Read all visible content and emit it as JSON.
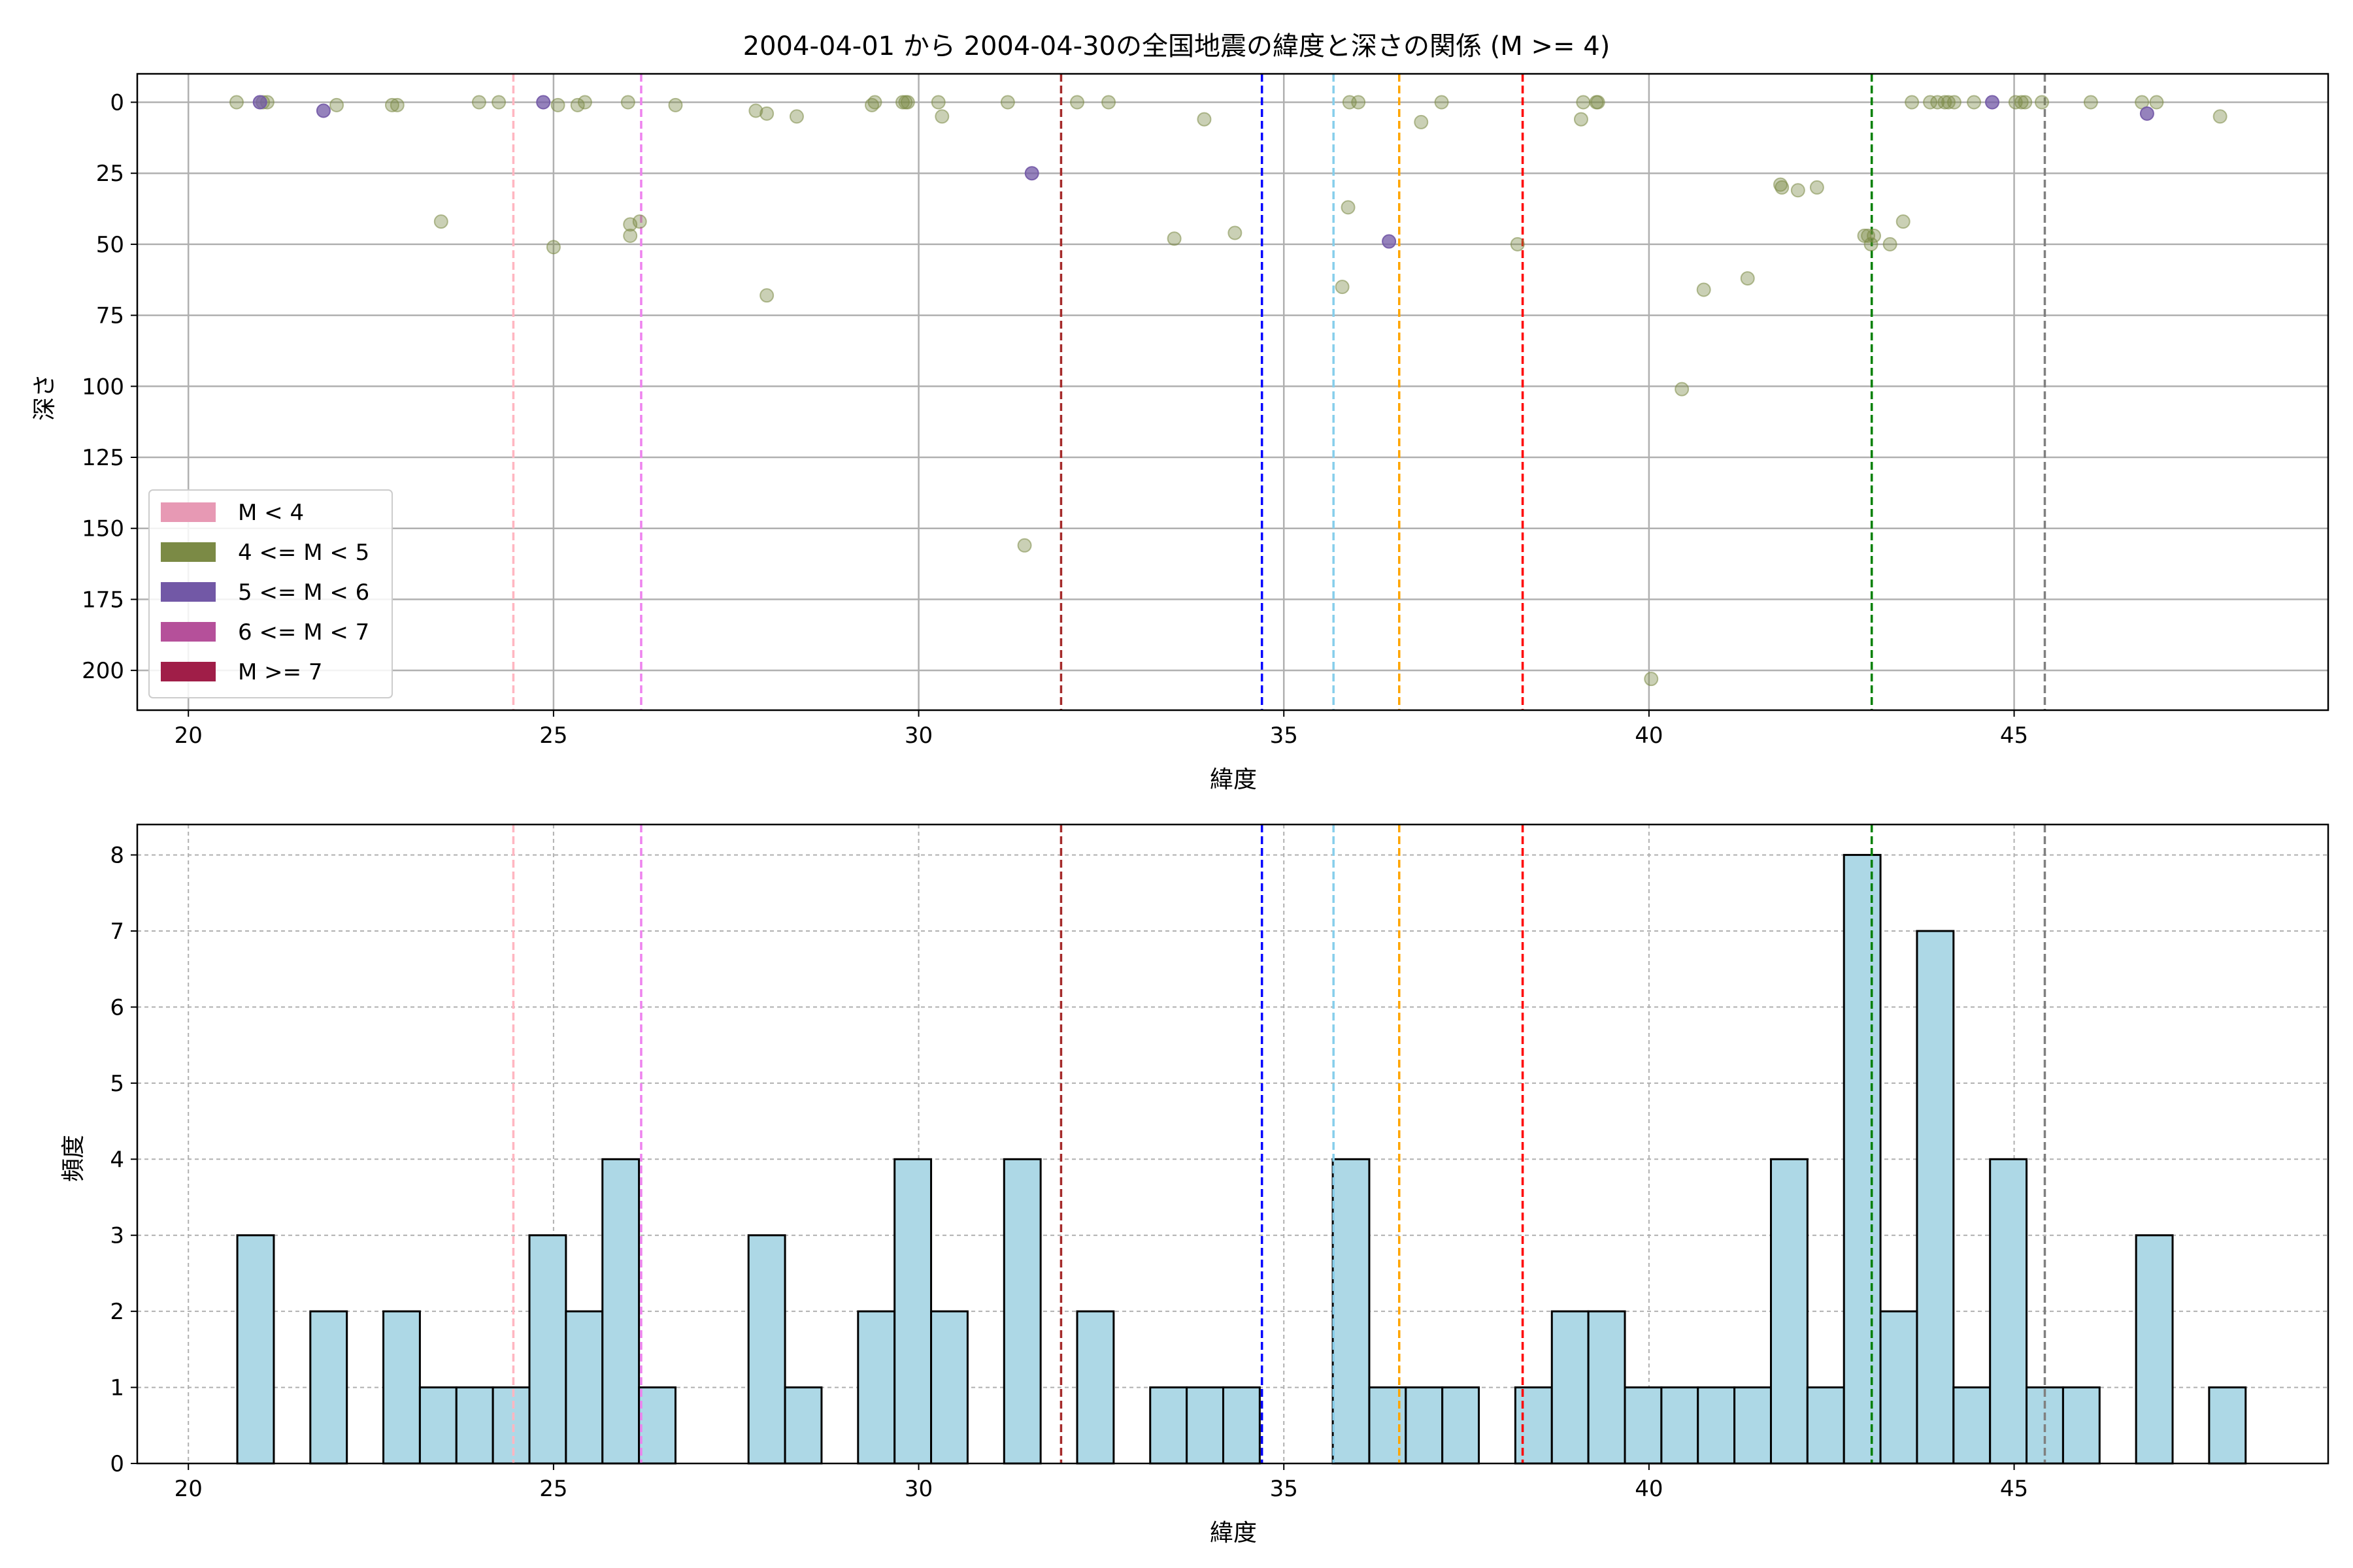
{
  "title": "2004-04-01 から 2004-04-30の全国地震の緯度と深さの関係 (M >= 4)",
  "legend": {
    "placement": "lower-left",
    "entries": [
      {
        "label": "M < 4",
        "color": "#e799b4"
      },
      {
        "label": "4 <= M < 5",
        "color": "#7b8a45"
      },
      {
        "label": "5 <= M < 6",
        "color": "#7258a6"
      },
      {
        "label": "6 <= M < 7",
        "color": "#b5509a"
      },
      {
        "label": "M >= 7",
        "color": "#a01e48"
      }
    ]
  },
  "reference_lines": [
    {
      "x": 24.45,
      "color": "#ffb6c1"
    },
    {
      "x": 26.2,
      "color": "#ee82ee"
    },
    {
      "x": 31.95,
      "color": "#a52a2a"
    },
    {
      "x": 34.7,
      "color": "#0000ff"
    },
    {
      "x": 35.68,
      "color": "#87ceeb"
    },
    {
      "x": 36.58,
      "color": "#ffa500"
    },
    {
      "x": 38.27,
      "color": "#ff0000"
    },
    {
      "x": 43.05,
      "color": "#008000"
    },
    {
      "x": 45.42,
      "color": "#808080"
    }
  ],
  "chart_data": [
    {
      "type": "scatter",
      "title": "2004-04-01 から 2004-04-30の全国地震の緯度と深さの関係 (M >= 4)",
      "xlabel": "緯度",
      "ylabel": "深さ",
      "xlim": [
        19.3,
        49.3
      ],
      "ylim": [
        214,
        -10
      ],
      "y_inverted": true,
      "xticks": [
        20,
        25,
        30,
        35,
        40,
        45
      ],
      "yticks": [
        0,
        25,
        50,
        75,
        100,
        125,
        150,
        175,
        200
      ],
      "grid": true,
      "series": [
        {
          "name": "4 <= M < 5",
          "color": "#7b8a45",
          "points": [
            [
              20.66,
              0
            ],
            [
              21.02,
              0
            ],
            [
              21.08,
              0
            ],
            [
              22.03,
              1
            ],
            [
              22.79,
              1
            ],
            [
              22.86,
              1
            ],
            [
              23.46,
              42
            ],
            [
              23.98,
              0
            ],
            [
              24.25,
              0
            ],
            [
              25.0,
              51
            ],
            [
              25.06,
              1
            ],
            [
              25.33,
              1
            ],
            [
              25.43,
              0
            ],
            [
              26.02,
              0
            ],
            [
              26.05,
              43
            ],
            [
              26.05,
              47
            ],
            [
              26.18,
              42
            ],
            [
              26.67,
              1
            ],
            [
              27.77,
              3
            ],
            [
              27.92,
              4
            ],
            [
              27.92,
              68
            ],
            [
              28.33,
              5
            ],
            [
              29.36,
              1
            ],
            [
              29.4,
              0
            ],
            [
              29.78,
              0
            ],
            [
              29.82,
              0
            ],
            [
              29.85,
              0
            ],
            [
              30.27,
              0
            ],
            [
              30.32,
              5
            ],
            [
              31.22,
              0
            ],
            [
              31.45,
              156
            ],
            [
              32.17,
              0
            ],
            [
              32.6,
              0
            ],
            [
              33.5,
              48
            ],
            [
              33.91,
              6
            ],
            [
              34.33,
              46
            ],
            [
              35.8,
              65
            ],
            [
              35.88,
              37
            ],
            [
              35.9,
              0
            ],
            [
              36.02,
              0
            ],
            [
              36.88,
              7
            ],
            [
              37.16,
              0
            ],
            [
              38.2,
              50
            ],
            [
              39.07,
              6
            ],
            [
              39.1,
              0
            ],
            [
              39.28,
              0
            ],
            [
              39.3,
              0
            ],
            [
              40.03,
              203
            ],
            [
              40.45,
              101
            ],
            [
              40.75,
              66
            ],
            [
              41.35,
              62
            ],
            [
              41.8,
              29
            ],
            [
              41.82,
              30
            ],
            [
              42.04,
              31
            ],
            [
              42.3,
              30
            ],
            [
              42.95,
              47
            ],
            [
              43.0,
              47
            ],
            [
              43.04,
              50
            ],
            [
              43.08,
              47
            ],
            [
              43.3,
              50
            ],
            [
              43.48,
              42
            ],
            [
              43.6,
              0
            ],
            [
              43.85,
              0
            ],
            [
              43.95,
              0
            ],
            [
              44.05,
              0
            ],
            [
              44.1,
              0
            ],
            [
              44.18,
              0
            ],
            [
              44.45,
              0
            ],
            [
              45.02,
              0
            ],
            [
              45.1,
              0
            ],
            [
              45.15,
              0
            ],
            [
              45.38,
              0
            ],
            [
              46.05,
              0
            ],
            [
              46.75,
              0
            ],
            [
              46.95,
              0
            ],
            [
              47.82,
              5
            ]
          ]
        },
        {
          "name": "5 <= M < 6",
          "color": "#7258a6",
          "points": [
            [
              20.98,
              0
            ],
            [
              21.85,
              3
            ],
            [
              24.86,
              0
            ],
            [
              31.55,
              25
            ],
            [
              36.44,
              49
            ],
            [
              44.7,
              0
            ],
            [
              46.82,
              4
            ]
          ]
        }
      ]
    },
    {
      "type": "bar",
      "subtype": "histogram",
      "xlabel": "緯度",
      "ylabel": "頻度",
      "xlim": [
        19.3,
        49.3
      ],
      "ylim": [
        0,
        8.4
      ],
      "xticks": [
        20,
        25,
        30,
        35,
        40,
        45
      ],
      "yticks": [
        0,
        1,
        2,
        3,
        4,
        5,
        6,
        7,
        8
      ],
      "grid": true,
      "bar_color": "#add8e6",
      "bin_width": 0.5,
      "bins": [
        {
          "x": 20.67,
          "count": 3
        },
        {
          "x": 21.67,
          "count": 2
        },
        {
          "x": 22.67,
          "count": 2
        },
        {
          "x": 23.17,
          "count": 1
        },
        {
          "x": 23.67,
          "count": 1
        },
        {
          "x": 24.17,
          "count": 1
        },
        {
          "x": 24.67,
          "count": 3
        },
        {
          "x": 25.17,
          "count": 2
        },
        {
          "x": 25.67,
          "count": 4
        },
        {
          "x": 26.17,
          "count": 1
        },
        {
          "x": 27.67,
          "count": 3
        },
        {
          "x": 28.17,
          "count": 1
        },
        {
          "x": 29.17,
          "count": 2
        },
        {
          "x": 29.67,
          "count": 4
        },
        {
          "x": 30.17,
          "count": 2
        },
        {
          "x": 31.17,
          "count": 4
        },
        {
          "x": 32.17,
          "count": 2
        },
        {
          "x": 33.17,
          "count": 1
        },
        {
          "x": 33.67,
          "count": 1
        },
        {
          "x": 34.17,
          "count": 1
        },
        {
          "x": 35.67,
          "count": 4
        },
        {
          "x": 36.17,
          "count": 1
        },
        {
          "x": 36.67,
          "count": 1
        },
        {
          "x": 37.17,
          "count": 1
        },
        {
          "x": 38.17,
          "count": 1
        },
        {
          "x": 38.67,
          "count": 2
        },
        {
          "x": 39.17,
          "count": 2
        },
        {
          "x": 39.67,
          "count": 1
        },
        {
          "x": 40.17,
          "count": 1
        },
        {
          "x": 40.67,
          "count": 1
        },
        {
          "x": 41.17,
          "count": 1
        },
        {
          "x": 41.67,
          "count": 4
        },
        {
          "x": 42.17,
          "count": 1
        },
        {
          "x": 42.67,
          "count": 8
        },
        {
          "x": 43.17,
          "count": 2
        },
        {
          "x": 43.67,
          "count": 7
        },
        {
          "x": 44.17,
          "count": 1
        },
        {
          "x": 44.67,
          "count": 4
        },
        {
          "x": 45.17,
          "count": 1
        },
        {
          "x": 45.67,
          "count": 1
        },
        {
          "x": 46.67,
          "count": 3
        },
        {
          "x": 47.67,
          "count": 1
        }
      ]
    }
  ]
}
